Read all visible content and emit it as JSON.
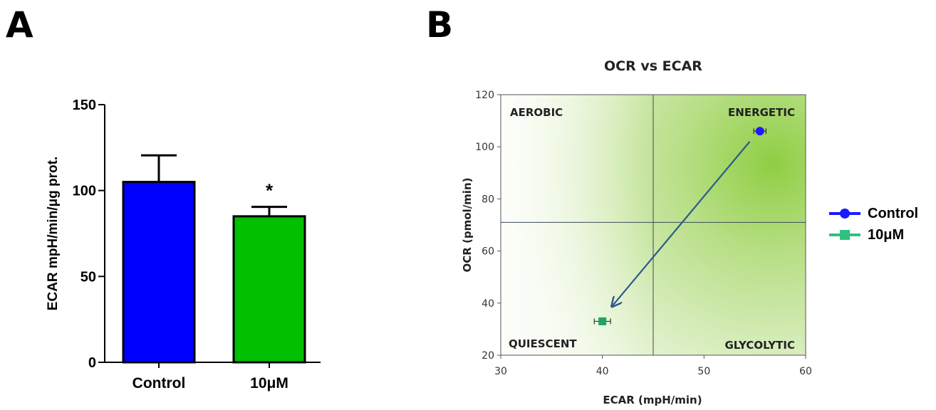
{
  "panels": {
    "a_label": "A",
    "b_label": "B"
  },
  "chart_data": [
    {
      "type": "bar",
      "title": "",
      "categories": [
        "Control",
        "10μM"
      ],
      "values": [
        105,
        85
      ],
      "error": [
        15.5,
        5.5
      ],
      "bar_colors": [
        "#0000ff",
        "#00c000"
      ],
      "annotations": [
        {
          "category": "10μM",
          "text": "*"
        }
      ],
      "xlabel": "",
      "ylabel": "ECAR mpH/min/μg prot.",
      "ylim": [
        0,
        150
      ],
      "yticks": [
        "0",
        "50",
        "100",
        "150"
      ],
      "grid": false
    },
    {
      "type": "scatter",
      "title": "OCR vs ECAR",
      "xlabel": "ECAR (mpH/min)",
      "ylabel": "OCR (pmol/min)",
      "xlim": [
        30,
        60
      ],
      "ylim": [
        20,
        120
      ],
      "xticks": [
        "30",
        "40",
        "50",
        "60"
      ],
      "yticks": [
        "20",
        "40",
        "60",
        "80",
        "100",
        "120"
      ],
      "divider_x": 45,
      "divider_y": 71,
      "quadrants": {
        "top_left": "AEROBIC",
        "top_right": "ENERGETIC",
        "bottom_left": "QUIESCENT",
        "bottom_right": "GLYCOLYTIC"
      },
      "series": [
        {
          "name": "Control",
          "x": [
            55.5
          ],
          "y": [
            106
          ],
          "xerr": [
            0.6
          ],
          "yerr": [
            1.5
          ],
          "color": "#1a1aff",
          "marker": "circle"
        },
        {
          "name": "10μM",
          "x": [
            40
          ],
          "y": [
            33
          ],
          "xerr": [
            0.8
          ],
          "yerr": [
            1.0
          ],
          "color": "#21a366",
          "marker": "square"
        }
      ],
      "arrow": {
        "from": [
          54.5,
          102
        ],
        "to": [
          41,
          39
        ],
        "color": "#2b5a8a"
      },
      "legend_position": "right",
      "grid": false
    }
  ]
}
